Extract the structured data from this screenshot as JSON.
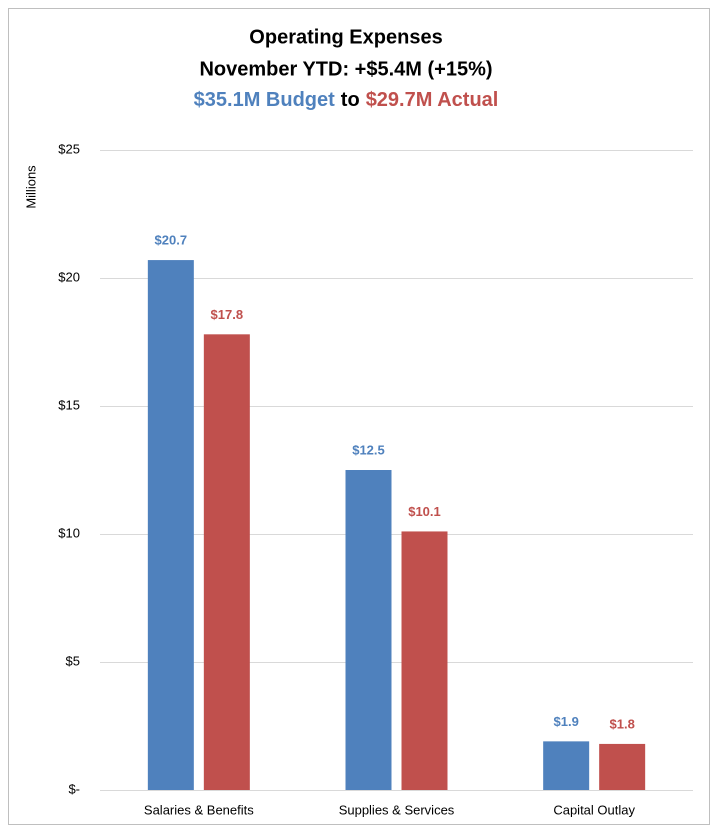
{
  "chart_data": {
    "type": "bar",
    "title": "Operating Expenses",
    "subtitle": "November YTD: +$5.4M (+15%)",
    "subtitle_parts": [
      {
        "text": "$35.1M Budget",
        "color": "#4f81bd"
      },
      {
        "text": "to",
        "color": "#000000"
      },
      {
        "text": "$29.7M Actual",
        "color": "#c0504d"
      }
    ],
    "y_label": "Millions",
    "categories": [
      "Salaries & Benefits",
      "Supplies & Services",
      "Capital Outlay"
    ],
    "series": [
      {
        "color": "#4f81bd",
        "values": [
          20.7,
          12.5,
          1.9
        ],
        "value_labels": [
          "$20.7",
          "$12.5",
          "$1.9"
        ]
      },
      {
        "color": "#c0504d",
        "values": [
          17.8,
          10.1,
          1.8
        ],
        "value_labels": [
          "$17.8",
          "$10.1",
          "$1.8"
        ]
      }
    ],
    "ylim": [
      0,
      25
    ],
    "yticks": [
      {
        "value": 0,
        "label": "$-"
      },
      {
        "value": 5,
        "label": "$5"
      },
      {
        "value": 10,
        "label": "$10"
      },
      {
        "value": 15,
        "label": "$15"
      },
      {
        "value": 20,
        "label": "$20"
      },
      {
        "value": 25,
        "label": "$25"
      }
    ],
    "grid": true
  }
}
